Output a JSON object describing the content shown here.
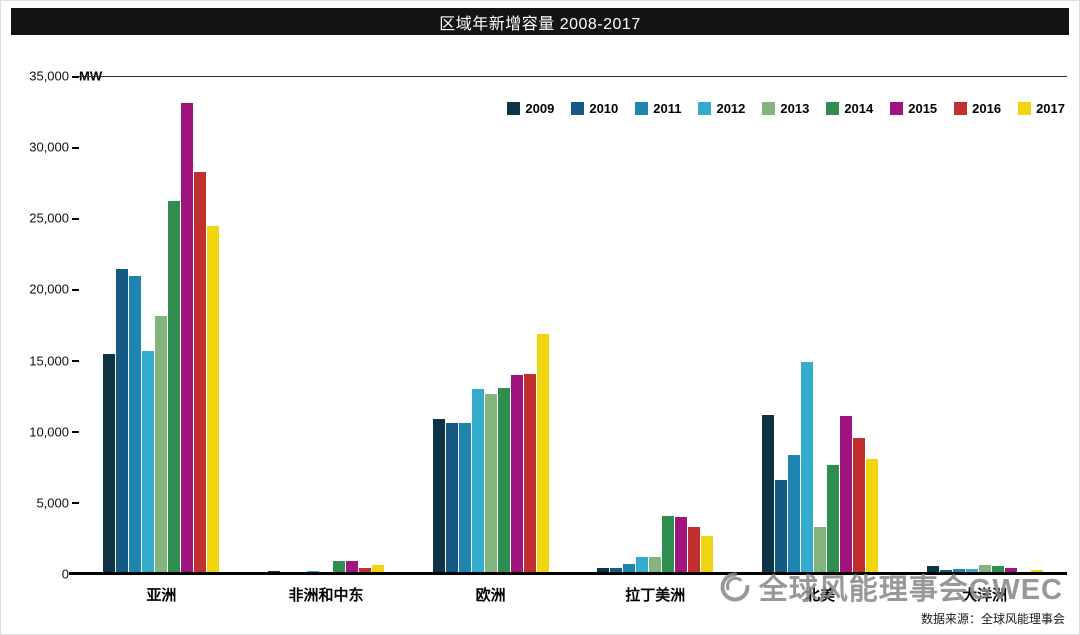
{
  "chart_data": {
    "type": "bar",
    "title": "区域年新增容量 2008-2017",
    "unit": "MW",
    "xlabel": "",
    "ylabel": "",
    "ylim": [
      0,
      35000
    ],
    "ytick_interval": 5000,
    "ytick_labels": [
      "35,000",
      "30,000",
      "25,000",
      "20,000",
      "15,000",
      "10,000",
      "5,000",
      "0"
    ],
    "grid": false,
    "legend_position": "top-right-inside",
    "categories": [
      "亚洲",
      "非洲和中东",
      "欧洲",
      "拉丁美洲",
      "北美",
      "大洋洲"
    ],
    "series": [
      {
        "name": "2009",
        "color": "#0d3345",
        "values": [
          15500,
          200,
          10900,
          400,
          11200,
          550
        ]
      },
      {
        "name": "2010",
        "color": "#155a85",
        "values": [
          21500,
          100,
          10600,
          450,
          6600,
          250
        ]
      },
      {
        "name": "2011",
        "color": "#1e84b0",
        "values": [
          21000,
          100,
          10600,
          700,
          8400,
          350
        ]
      },
      {
        "name": "2012",
        "color": "#35abcd",
        "values": [
          15700,
          200,
          13000,
          1200,
          14900,
          350
        ]
      },
      {
        "name": "2013",
        "color": "#84b47e",
        "values": [
          18200,
          100,
          12700,
          1200,
          3300,
          600
        ]
      },
      {
        "name": "2014",
        "color": "#2f8d50",
        "values": [
          26300,
          900,
          13100,
          4100,
          7700,
          550
        ]
      },
      {
        "name": "2015",
        "color": "#a0147e",
        "values": [
          33200,
          950,
          14000,
          4000,
          11100,
          400
        ]
      },
      {
        "name": "2016",
        "color": "#c22f2f",
        "values": [
          28300,
          400,
          14100,
          3300,
          9600,
          150
        ]
      },
      {
        "name": "2017",
        "color": "#f0d410",
        "values": [
          24500,
          600,
          16900,
          2700,
          8100,
          250
        ]
      }
    ]
  },
  "watermark": {
    "text": "全球风能理事会GWEC",
    "logo_icon": "gwec-swirl-logo"
  },
  "footer": {
    "source": "数据来源：全球风能理事会"
  }
}
